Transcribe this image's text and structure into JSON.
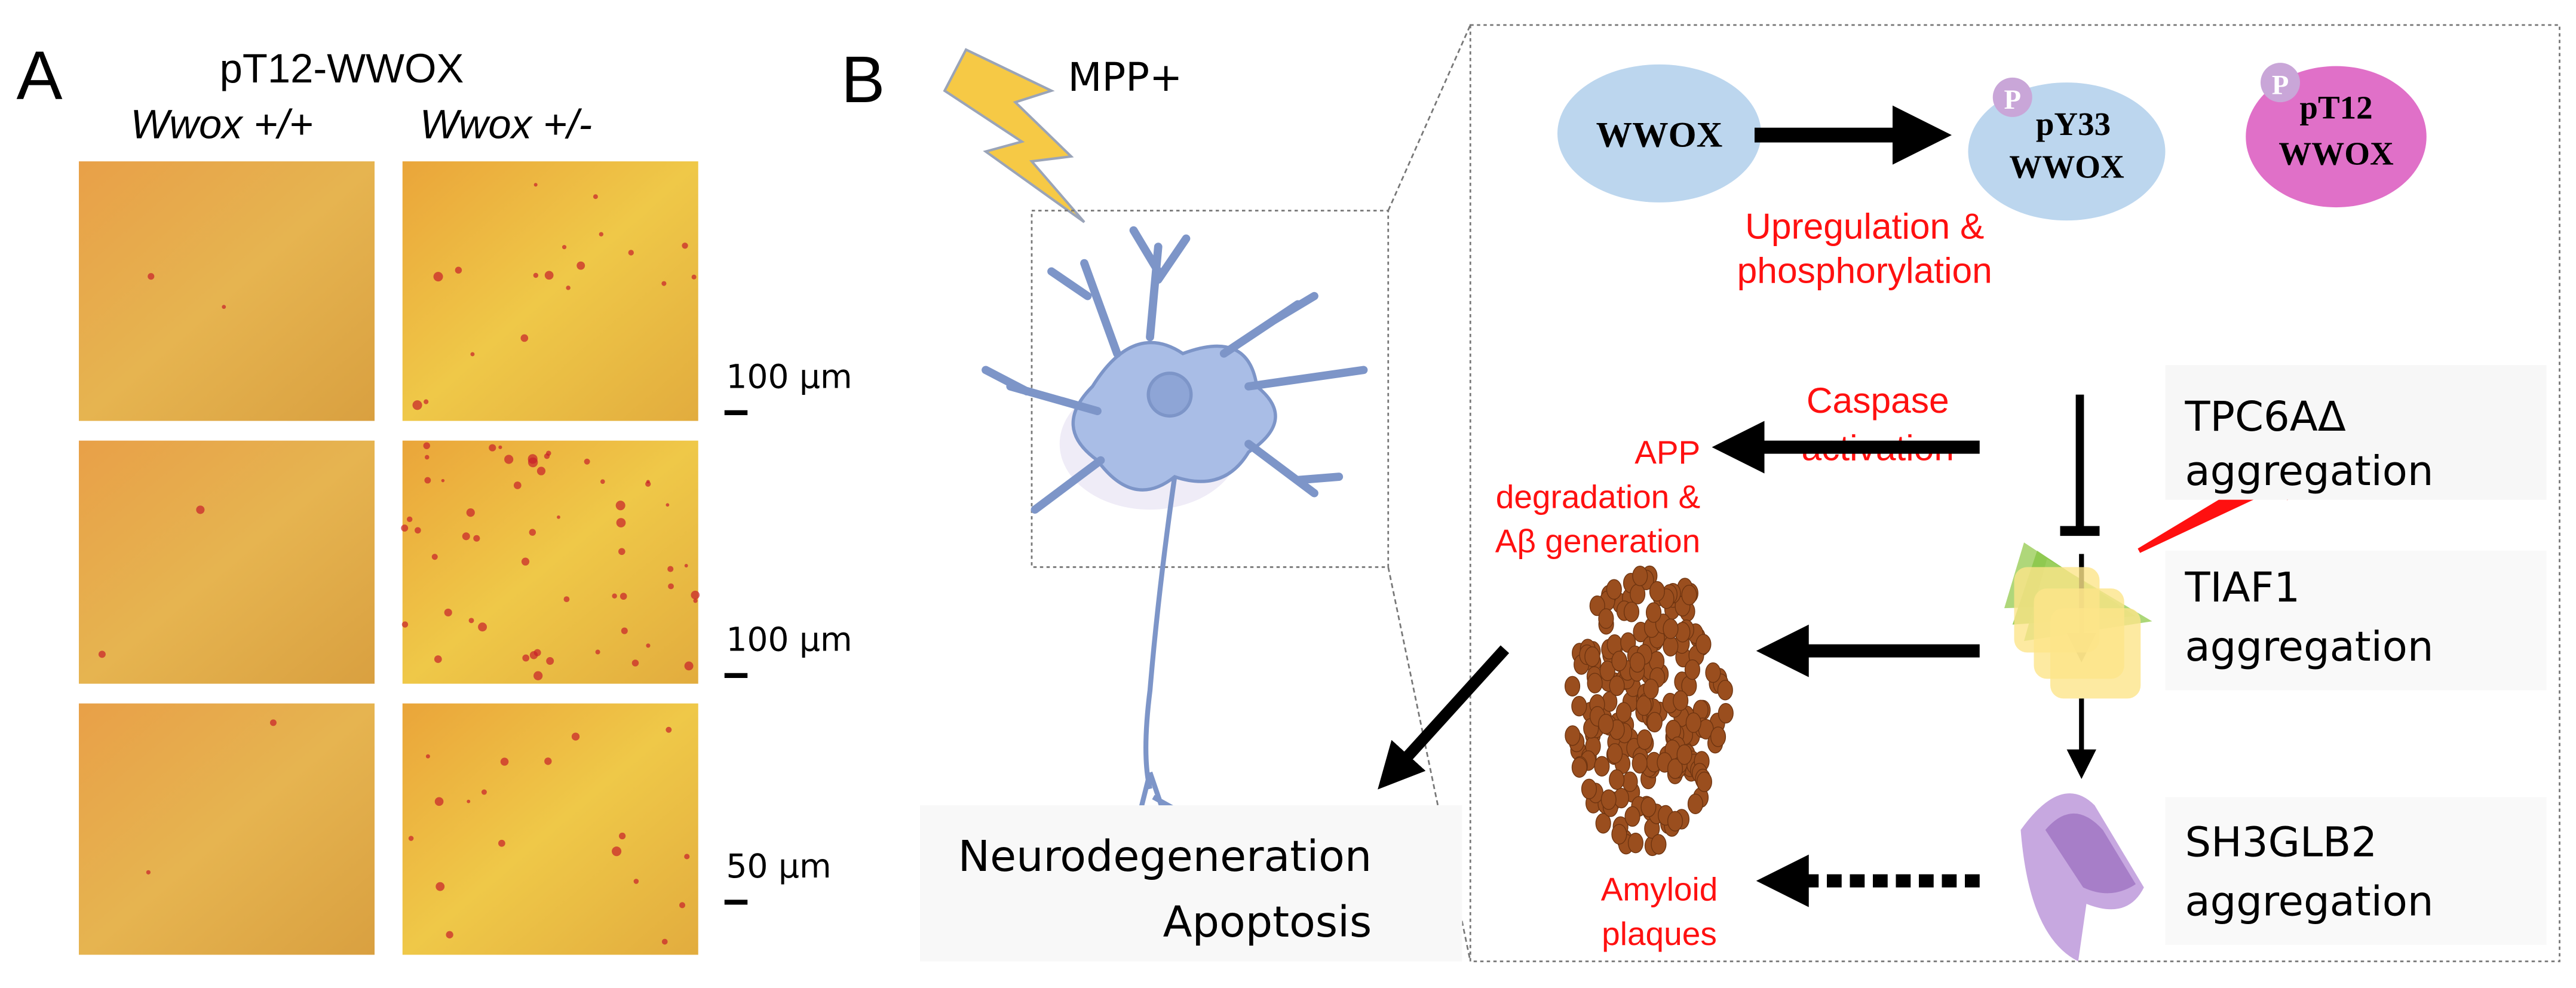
{
  "panel_a": {
    "label": "A",
    "title": "pT12-WWOX",
    "columns": [
      "Wwox +/+",
      "Wwox +/-"
    ],
    "scale_bars": [
      "100 μm",
      "100 μm",
      "50 μm"
    ]
  },
  "panel_b": {
    "label": "B",
    "stimulus": "MPP+",
    "nodes": {
      "wwox": "WWOX",
      "py33_line1": "pY33",
      "py33_line2": "WWOX",
      "pt12_line1": "pT12",
      "pt12_line2": "WWOX",
      "phospho_badge": "P"
    },
    "red_labels": {
      "upregulation_1": "Upregulation &",
      "upregulation_2": "phosphorylation",
      "caspase_1": "Caspase",
      "caspase_2": "activation",
      "app_1": "APP",
      "app_2": "degradation &",
      "app_3": "Aβ generation",
      "amyloid_1": "Amyloid",
      "amyloid_2": "plaques"
    },
    "aggregates": [
      {
        "name": "TPC6AΔ",
        "suffix": "aggregation",
        "color": "#8cc84b"
      },
      {
        "name": "TIAF1",
        "suffix": "aggregation",
        "color": "#fde58a"
      },
      {
        "name": "SH3GLB2",
        "suffix": "aggregation",
        "color": "#b48cd2"
      }
    ],
    "outcome_1": "Neurodegeneration",
    "outcome_2": "Apoptosis"
  },
  "colors": {
    "wwox_fill": "#bcd6ee",
    "pt12_fill": "#e070c8",
    "phospho_fill": "#c9a6d8",
    "red_text": "#ff1010",
    "plaque": "#9a4e1e",
    "neuron": "#a9bde6"
  }
}
